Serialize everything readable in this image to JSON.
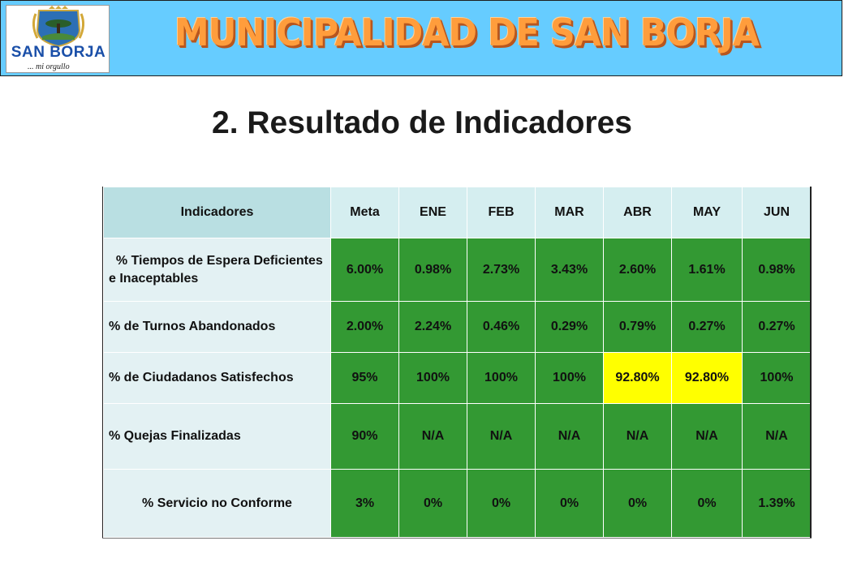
{
  "header": {
    "logo": {
      "name": "SAN BORJA",
      "tagline": "... mi orgullo"
    },
    "org_title": "MUNICIPALIDAD DE SAN BORJA"
  },
  "section_title": "2. Resultado de Indicadores",
  "table": {
    "columns": [
      "Indicadores",
      "Meta",
      "ENE",
      "FEB",
      "MAR",
      "ABR",
      "MAY",
      "JUN"
    ],
    "rows": [
      {
        "label": "  % Tiempos de Espera Deficientes e Inaceptables",
        "values": [
          "6.00%",
          "0.98%",
          "2.73%",
          "3.43%",
          "2.60%",
          "1.61%",
          "0.98%"
        ],
        "highlight": [
          false,
          false,
          false,
          false,
          false,
          false,
          false
        ]
      },
      {
        "label": "% de Turnos Abandonados",
        "values": [
          "2.00%",
          "2.24%",
          "0.46%",
          "0.29%",
          "0.79%",
          "0.27%",
          "0.27%"
        ],
        "highlight": [
          false,
          false,
          false,
          false,
          false,
          false,
          false
        ]
      },
      {
        "label": "% de Ciudadanos Satisfechos",
        "values": [
          "95%",
          "100%",
          "100%",
          "100%",
          "92.80%",
          "92.80%",
          "100%"
        ],
        "highlight": [
          false,
          false,
          false,
          false,
          true,
          true,
          false
        ]
      },
      {
        "label": "% Quejas Finalizadas",
        "values": [
          "90%",
          "N/A",
          "N/A",
          "N/A",
          "N/A",
          "N/A",
          "N/A"
        ],
        "highlight": [
          false,
          false,
          false,
          false,
          false,
          false,
          false
        ]
      },
      {
        "label": "% Servicio no Conforme",
        "values": [
          "3%",
          "0%",
          "0%",
          "0%",
          "0%",
          "0%",
          "1.39%"
        ],
        "highlight": [
          false,
          false,
          false,
          false,
          false,
          false,
          false
        ]
      }
    ]
  },
  "colors": {
    "banner": "#66ccff",
    "title_orange": "#ff9d3c",
    "cell_green": "#339933",
    "cell_warning": "#ffff00",
    "label_bg": "#e3f1f3",
    "header_bg": "#d5eef0"
  }
}
